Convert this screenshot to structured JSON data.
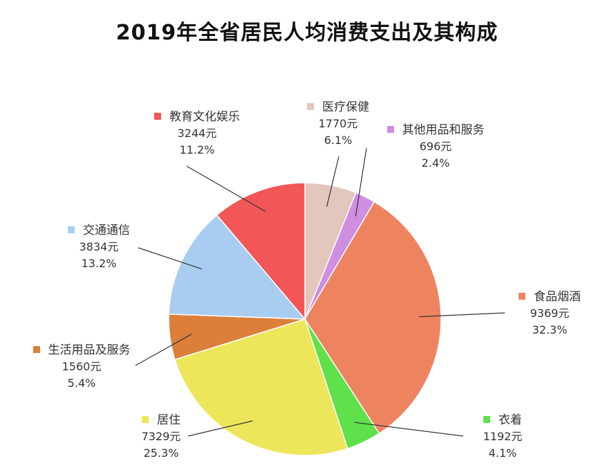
{
  "chart_data": {
    "type": "pie",
    "title": "2019年全省居民人均消费支出及其构成",
    "unit": "元",
    "slices": [
      {
        "name": "医疗保健",
        "value": 1770,
        "value_label": "1770元",
        "percent": "6.1%",
        "color": "#e3c6bc"
      },
      {
        "name": "其他用品和服务",
        "value": 696,
        "value_label": "696元",
        "percent": "2.4%",
        "color": "#cf8ee0"
      },
      {
        "name": "食品烟酒",
        "value": 9369,
        "value_label": "9369元",
        "percent": "32.3%",
        "color": "#ee8360"
      },
      {
        "name": "衣着",
        "value": 1192,
        "value_label": "1192元",
        "percent": "4.1%",
        "color": "#5ee14a"
      },
      {
        "name": "居住",
        "value": 7329,
        "value_label": "7329元",
        "percent": "25.3%",
        "color": "#eee65a"
      },
      {
        "name": "生活用品及服务",
        "value": 1560,
        "value_label": "1560元",
        "percent": "5.4%",
        "color": "#db7f3a"
      },
      {
        "name": "交通通信",
        "value": 3834,
        "value_label": "3834元",
        "percent": "13.2%",
        "color": "#a9cdf0"
      },
      {
        "name": "教育文化娱乐",
        "value": 3244,
        "value_label": "3244元",
        "percent": "11.2%",
        "color": "#f25656"
      }
    ]
  }
}
